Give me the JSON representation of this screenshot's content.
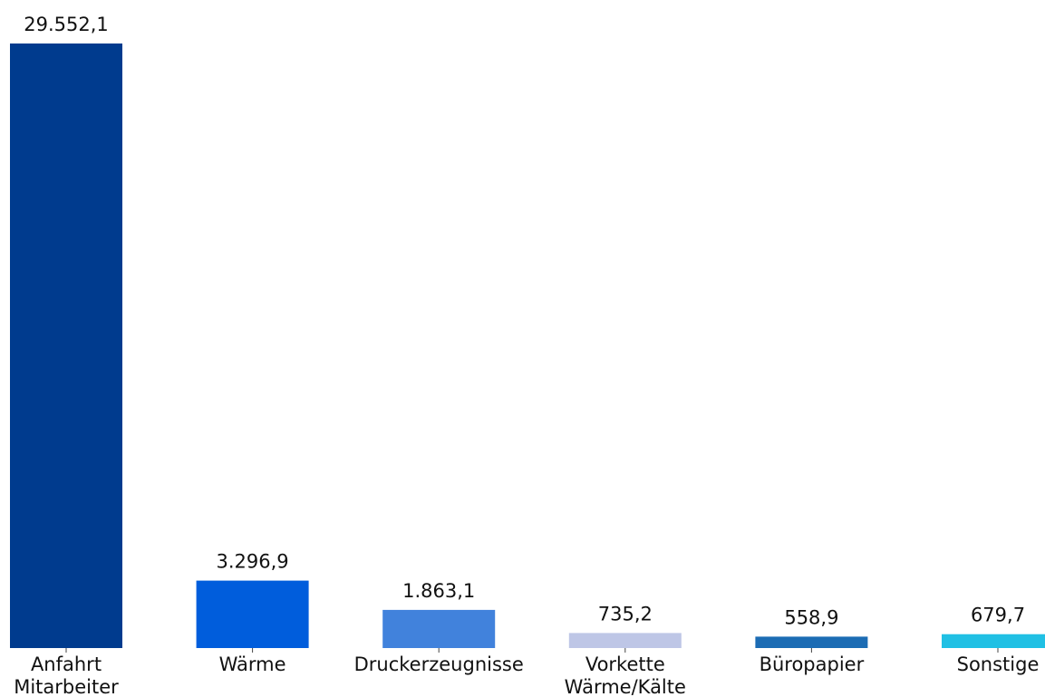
{
  "chart_data": {
    "type": "bar",
    "categories": [
      [
        "Anfahrt",
        "Mitarbeiter"
      ],
      [
        "Wärme"
      ],
      [
        "Druckerzeugnisse"
      ],
      [
        "Vorkette",
        "Wärme/Kälte"
      ],
      [
        "Büropapier"
      ],
      [
        "Sonstige"
      ]
    ],
    "values": [
      29552.1,
      3296.9,
      1863.1,
      735.2,
      558.9,
      679.7
    ],
    "value_labels": [
      "29.552,1",
      "3.296,9",
      "1.863,1",
      "735,2",
      "558,9",
      "679,7"
    ],
    "colors": [
      "#003b8e",
      "#005ddc",
      "#4182dc",
      "#bec6e6",
      "#1c6cb4",
      "#20c0e4"
    ],
    "title": "",
    "xlabel": "",
    "ylabel": "",
    "ylim": [
      0,
      29552.1
    ],
    "grid": false,
    "legend": "none"
  }
}
